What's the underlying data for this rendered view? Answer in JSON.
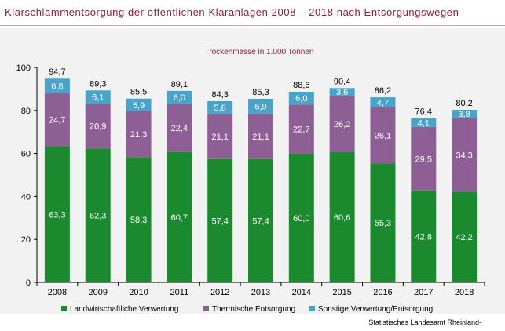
{
  "chart_data": {
    "type": "bar",
    "stacked": true,
    "title": "Klärschlammentsorgung der öffentlichen Kläranlagen 2008 – 2018 nach Entsorgungswegen",
    "subtitle": "Trockenmasse in 1.000 Tonnen",
    "categories": [
      "2008",
      "2009",
      "2010",
      "2011",
      "2012",
      "2013",
      "2014",
      "2015",
      "2016",
      "2017",
      "2018"
    ],
    "series": [
      {
        "name": "Landwirtschaftliche Verwertung",
        "color": "#1b8a2e",
        "values": [
          63.3,
          62.3,
          58.3,
          60.7,
          57.4,
          57.4,
          60.0,
          60.6,
          55.3,
          42.8,
          42.2
        ],
        "labels": [
          "63,3",
          "62,3",
          "58,3",
          "60,7",
          "57,4",
          "57,4",
          "60,0",
          "60,6",
          "55,3",
          "42,8",
          "42,2"
        ]
      },
      {
        "name": "Thermische Entsorgung",
        "color": "#8e5f94",
        "values": [
          24.7,
          20.9,
          21.3,
          22.4,
          21.1,
          21.1,
          22.7,
          26.2,
          26.1,
          29.5,
          34.3
        ],
        "labels": [
          "24,7",
          "20,9",
          "21,3",
          "22,4",
          "21,1",
          "21,1",
          "22,7",
          "26,2",
          "26,1",
          "29,5",
          "34,3"
        ]
      },
      {
        "name": "Sonstige Verwertung/Entsorgung",
        "color": "#4aa3c8",
        "values": [
          6.8,
          6.1,
          5.9,
          6.0,
          5.8,
          6.9,
          6.0,
          3.6,
          4.7,
          4.1,
          3.8
        ],
        "labels": [
          "6,8",
          "6,1",
          "5,9",
          "6,0",
          "5,8",
          "6,9",
          "6,0",
          "3,6",
          "4,7",
          "4,1",
          "3,8"
        ]
      }
    ],
    "totals": [
      94.7,
      89.3,
      85.5,
      89.1,
      84.3,
      85.3,
      88.6,
      90.4,
      86.2,
      76.4,
      80.2
    ],
    "total_labels": [
      "94,7",
      "89,3",
      "85,5",
      "89,1",
      "84,3",
      "85,3",
      "88,6",
      "90,4",
      "86,2",
      "76,4",
      "80,2"
    ],
    "ylim": [
      0,
      100
    ],
    "yticks": [
      0,
      20,
      40,
      60,
      80,
      100
    ],
    "ytick_labels": [
      "0",
      "20",
      "40",
      "60",
      "80",
      "100"
    ],
    "grid": false,
    "legend_position": "bottom"
  },
  "source": "Statistisches Landesamt Rheinland-"
}
